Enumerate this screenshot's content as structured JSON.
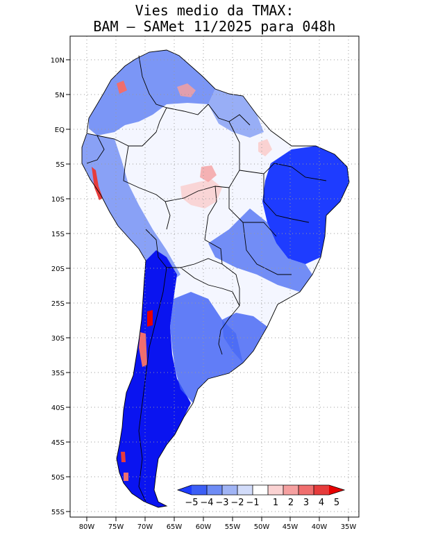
{
  "title": {
    "line1": "Vies medio da TMAX:",
    "line2": "BAM – SAMet 11/2025  para 048h"
  },
  "map": {
    "region": "South America",
    "lat_labels": [
      "10N",
      "5N",
      "EQ",
      "5S",
      "10S",
      "15S",
      "20S",
      "25S",
      "30S",
      "35S",
      "40S",
      "45S",
      "50S",
      "55S"
    ],
    "lon_labels": [
      "80W",
      "75W",
      "70W",
      "65W",
      "60W",
      "55W",
      "50W",
      "45W",
      "40W",
      "35W"
    ]
  },
  "colorbar": {
    "labels": [
      "−5",
      "−4",
      "−3",
      "−2",
      "−1",
      "1",
      "2",
      "3",
      "4",
      "5"
    ],
    "colors": [
      "#1e3cff",
      "#3c5ff5",
      "#6e8cf5",
      "#a0b4f5",
      "#d2dcfa",
      "#ffffff",
      "#fad2d2",
      "#f5a0a0",
      "#f06e6e",
      "#e63c3c",
      "#e60000"
    ]
  }
}
